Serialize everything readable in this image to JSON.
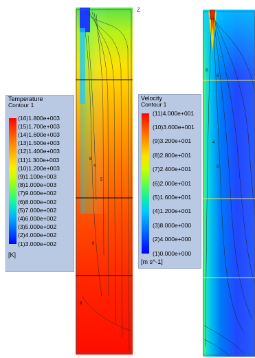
{
  "temperature_legend": {
    "title": "Temperature",
    "subtitle": "Contour 1",
    "levels": [
      "(16)1.800e+003",
      "(15)1.700e+003",
      "(14)1.600e+003",
      "(13)1.500e+003",
      "(12)1.400e+003",
      "(11)1.300e+003",
      "(10)1.200e+003",
      "(9)1.100e+003",
      "(8)1.000e+003",
      "(7)9.000e+002",
      "(6)8.000e+002",
      "(5)7.000e+002",
      "(4)6.000e+002",
      "(3)5.000e+002",
      "(2)4.000e+002",
      "(1)3.000e+002"
    ],
    "unit": "[K]",
    "colors": [
      "#ff0000",
      "#ff3000",
      "#ff5a00",
      "#ff8400",
      "#ffab00",
      "#ffd200",
      "#f7f200",
      "#c8ff00",
      "#8cff1e",
      "#4cff5a",
      "#14f8a0",
      "#00d6dc",
      "#00a8ff",
      "#0074ff",
      "#0040ff",
      "#0000ff"
    ]
  },
  "velocity_legend": {
    "title": "Velocity",
    "subtitle": "Contour 1",
    "levels": [
      "(11)4.000e+001",
      "(10)3.600e+001",
      "(9)3.200e+001",
      "(8)2.800e+001",
      "(7)2.400e+001",
      "(6)2.000e+001",
      "(5)1.600e+001",
      "(4)1.200e+001",
      "(3)8.000e+000",
      "(2)4.000e+000",
      "(1)0.000e+000"
    ],
    "unit": "[m s^-1]",
    "colors": [
      "#ff0000",
      "#ff5000",
      "#ff9a00",
      "#ffe000",
      "#c8ff00",
      "#64ff46",
      "#14f0a0",
      "#00c8ff",
      "#0088ff",
      "#0044ff",
      "#0000ff"
    ]
  },
  "temperature_plot": {
    "corner_label": "Z",
    "contour_labels": [
      "8",
      "4",
      "5",
      "6",
      "8"
    ]
  },
  "velocity_plot": {
    "contour_labels": [
      "8",
      "6",
      "4",
      "8"
    ]
  }
}
